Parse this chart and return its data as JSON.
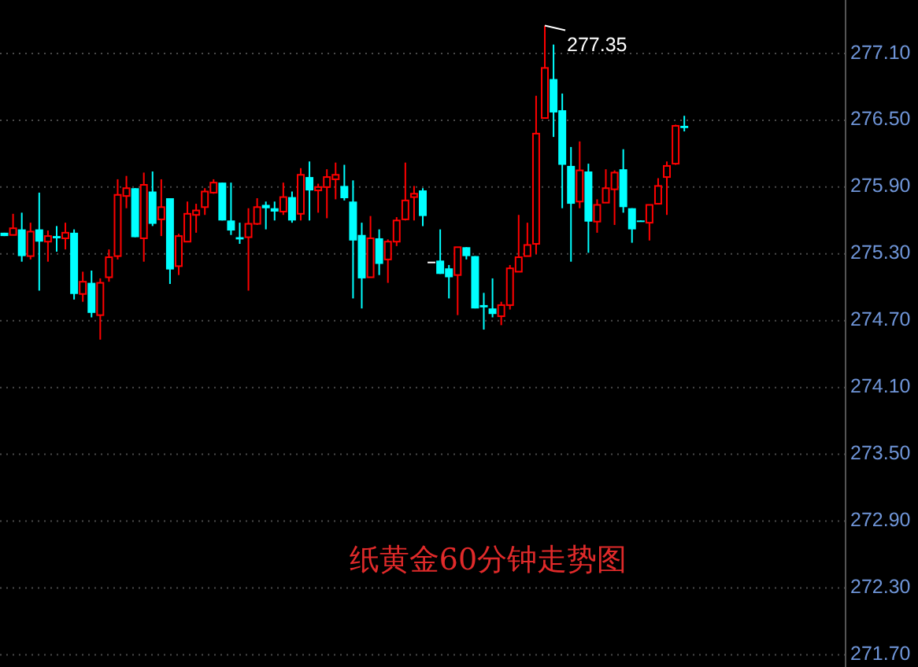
{
  "chart_data": {
    "type": "candlestick",
    "title": "纸黄金60分钟走势图",
    "categories": [
      null,
      null,
      null,
      null,
      null,
      null,
      null,
      null,
      null,
      null,
      null,
      null,
      null,
      null,
      null,
      null,
      null,
      null,
      null,
      null,
      null,
      null,
      null,
      null,
      null,
      null,
      null,
      null,
      null,
      null,
      null,
      null,
      null,
      null,
      null,
      null,
      null,
      null,
      null,
      null,
      null,
      null,
      null,
      null,
      null,
      null,
      null,
      null,
      null,
      null,
      null,
      null,
      null,
      null,
      null,
      null,
      null,
      null,
      null,
      null,
      null,
      null,
      null,
      null,
      null,
      null,
      null,
      null,
      null,
      null,
      null,
      null,
      null,
      null,
      null,
      null,
      null,
      null,
      null,
      null,
      null,
      null,
      null,
      null,
      null,
      null,
      null,
      null,
      null,
      null,
      null,
      null,
      null,
      null,
      null,
      null,
      null
    ],
    "ohlc": [
      [
        275.49,
        275.49,
        275.46,
        275.46
      ],
      [
        275.47,
        275.66,
        275.47,
        275.53
      ],
      [
        275.52,
        275.67,
        275.23,
        275.28
      ],
      [
        275.28,
        275.58,
        275.25,
        275.5
      ],
      [
        275.52,
        275.85,
        274.97,
        275.41
      ],
      [
        275.41,
        275.51,
        275.23,
        275.46
      ],
      [
        275.46,
        275.55,
        275.32,
        275.44
      ],
      [
        275.44,
        275.58,
        275.34,
        275.49
      ],
      [
        275.49,
        275.52,
        274.89,
        274.94
      ],
      [
        274.94,
        275.14,
        274.87,
        275.05
      ],
      [
        275.04,
        275.15,
        274.73,
        274.77
      ],
      [
        274.75,
        275.08,
        274.53,
        275.04
      ],
      [
        275.09,
        275.34,
        275.05,
        275.27
      ],
      [
        275.28,
        275.97,
        275.25,
        275.83
      ],
      [
        275.82,
        276.0,
        275.71,
        275.89
      ],
      [
        275.89,
        275.89,
        275.45,
        275.45
      ],
      [
        275.44,
        276.03,
        275.23,
        275.92
      ],
      [
        275.86,
        276.04,
        275.55,
        275.57
      ],
      [
        275.61,
        275.97,
        275.46,
        275.72
      ],
      [
        275.8,
        275.8,
        275.03,
        275.16
      ],
      [
        275.19,
        275.48,
        275.11,
        275.46
      ],
      [
        275.41,
        275.77,
        275.41,
        275.66
      ],
      [
        275.65,
        275.75,
        275.49,
        275.69
      ],
      [
        275.72,
        275.89,
        275.65,
        275.86
      ],
      [
        275.85,
        275.97,
        275.84,
        275.94
      ],
      [
        275.94,
        275.94,
        275.6,
        275.6
      ],
      [
        275.6,
        275.94,
        275.47,
        275.51
      ],
      [
        275.45,
        275.58,
        275.39,
        275.43
      ],
      [
        275.45,
        275.71,
        274.97,
        275.57
      ],
      [
        275.57,
        275.8,
        275.56,
        275.72
      ],
      [
        275.74,
        275.77,
        275.52,
        275.71
      ],
      [
        275.71,
        275.77,
        275.6,
        275.68
      ],
      [
        275.68,
        275.94,
        275.65,
        275.81
      ],
      [
        275.81,
        275.86,
        275.58,
        275.6
      ],
      [
        275.66,
        276.07,
        275.6,
        276.01
      ],
      [
        275.99,
        276.13,
        275.6,
        275.87
      ],
      [
        275.87,
        275.93,
        275.67,
        275.9
      ],
      [
        275.9,
        276.06,
        275.62,
        275.99
      ],
      [
        275.97,
        276.12,
        275.79,
        276.01
      ],
      [
        275.91,
        276.1,
        275.78,
        275.8
      ],
      [
        275.77,
        275.96,
        274.9,
        275.42
      ],
      [
        275.47,
        275.58,
        274.81,
        275.08
      ],
      [
        275.09,
        275.64,
        275.09,
        275.44
      ],
      [
        275.44,
        275.52,
        275.11,
        275.21
      ],
      [
        275.25,
        275.43,
        275.04,
        275.41
      ],
      [
        275.41,
        275.63,
        275.37,
        275.6
      ],
      [
        275.61,
        276.12,
        275.6,
        275.78
      ],
      [
        275.81,
        275.91,
        275.6,
        275.84
      ],
      [
        275.87,
        275.89,
        275.55,
        275.64
      ],
      [
        275.23,
        275.23,
        275.23,
        275.23
      ],
      [
        275.24,
        275.52,
        275.12,
        275.12
      ],
      [
        275.17,
        275.2,
        274.9,
        275.09
      ],
      [
        275.11,
        275.36,
        274.75,
        275.36
      ],
      [
        275.36,
        275.36,
        275.25,
        275.28
      ],
      [
        275.28,
        275.28,
        274.81,
        274.81
      ],
      [
        274.84,
        274.95,
        274.62,
        274.82
      ],
      [
        274.81,
        275.08,
        274.73,
        274.76
      ],
      [
        274.74,
        274.87,
        274.66,
        274.84
      ],
      [
        274.84,
        275.2,
        274.8,
        275.17
      ],
      [
        275.14,
        275.65,
        275.14,
        275.27
      ],
      [
        275.28,
        275.58,
        275.28,
        275.38
      ],
      [
        275.39,
        276.72,
        275.3,
        276.38
      ],
      [
        276.52,
        277.35,
        276.52,
        276.97
      ],
      [
        276.87,
        277.18,
        276.35,
        276.57
      ],
      [
        276.59,
        276.74,
        275.71,
        276.1
      ],
      [
        276.09,
        276.26,
        275.23,
        275.75
      ],
      [
        275.77,
        276.31,
        275.71,
        276.05
      ],
      [
        276.04,
        276.11,
        275.31,
        275.59
      ],
      [
        275.59,
        275.79,
        275.49,
        275.74
      ],
      [
        275.76,
        276.06,
        275.76,
        275.89
      ],
      [
        275.88,
        276.05,
        275.56,
        276.03
      ],
      [
        276.06,
        276.24,
        275.67,
        275.72
      ],
      [
        275.71,
        275.71,
        275.4,
        275.52
      ],
      [
        275.6,
        275.6,
        275.59,
        275.59
      ],
      [
        275.58,
        275.74,
        275.42,
        275.74
      ],
      [
        275.75,
        275.98,
        275.75,
        275.91
      ],
      [
        275.99,
        276.13,
        275.65,
        276.09
      ],
      [
        276.11,
        276.46,
        276.1,
        276.45
      ],
      [
        276.45,
        276.54,
        276.4,
        276.43
      ],
      null,
      null,
      null,
      null,
      null,
      null,
      null,
      null,
      null,
      null,
      null,
      null,
      null,
      null,
      null,
      null,
      null,
      null
    ],
    "colors": [
      "#00ffff",
      "#ff0000",
      "#00ffff",
      "#ff0000",
      "#00ffff",
      "#ff0000",
      "#00ffff",
      "#ff0000",
      "#00ffff",
      "#ff0000",
      "#00ffff",
      "#ff0000",
      "#ff0000",
      "#ff0000",
      "#ff0000",
      "#00ffff",
      "#ff0000",
      "#00ffff",
      "#ff0000",
      "#00ffff",
      "#ff0000",
      "#ff0000",
      "#ff0000",
      "#ff0000",
      "#ff0000",
      "#00ffff",
      "#00ffff",
      "#00ffff",
      "#ff0000",
      "#ff0000",
      "#00ffff",
      "#00ffff",
      "#ff0000",
      "#00ffff",
      "#ff0000",
      "#00ffff",
      "#ff0000",
      "#ff0000",
      "#ff0000",
      "#00ffff",
      "#00ffff",
      "#00ffff",
      "#ff0000",
      "#00ffff",
      "#ff0000",
      "#ff0000",
      "#ff0000",
      "#ff0000",
      "#00ffff",
      "#ffffff",
      "#00ffff",
      "#00ffff",
      "#ff0000",
      "#00ffff",
      "#00ffff",
      "#00ffff",
      "#00ffff",
      "#ff0000",
      "#ff0000",
      "#ff0000",
      "#ff0000",
      "#ff0000",
      "#ff0000",
      "#00ffff",
      "#00ffff",
      "#00ffff",
      "#ff0000",
      "#00ffff",
      "#ff0000",
      "#ff0000",
      "#ff0000",
      "#00ffff",
      "#00ffff",
      "#00ffff",
      "#ff0000",
      "#ff0000",
      "#ff0000",
      "#ff0000",
      "#00ffff",
      null,
      null,
      null,
      null,
      null,
      null,
      null,
      null,
      null,
      null,
      null,
      null,
      null,
      null,
      null,
      null,
      null,
      null
    ],
    "ylim": [
      271.59,
      277.58
    ],
    "yticks": [
      {
        "value": 277.1,
        "label": "277.10"
      },
      {
        "value": 276.5,
        "label": "276.50"
      },
      {
        "value": 275.9,
        "label": "275.90"
      },
      {
        "value": 275.3,
        "label": "275.30"
      },
      {
        "value": 274.7,
        "label": "274.70"
      },
      {
        "value": 274.1,
        "label": "274.10"
      },
      {
        "value": 273.5,
        "label": "273.50"
      },
      {
        "value": 272.9,
        "label": "272.90"
      },
      {
        "value": 272.3,
        "label": "272.30"
      },
      {
        "value": 271.7,
        "label": "271.70"
      }
    ],
    "grid": "y",
    "annotations": [
      "277.35"
    ]
  }
}
